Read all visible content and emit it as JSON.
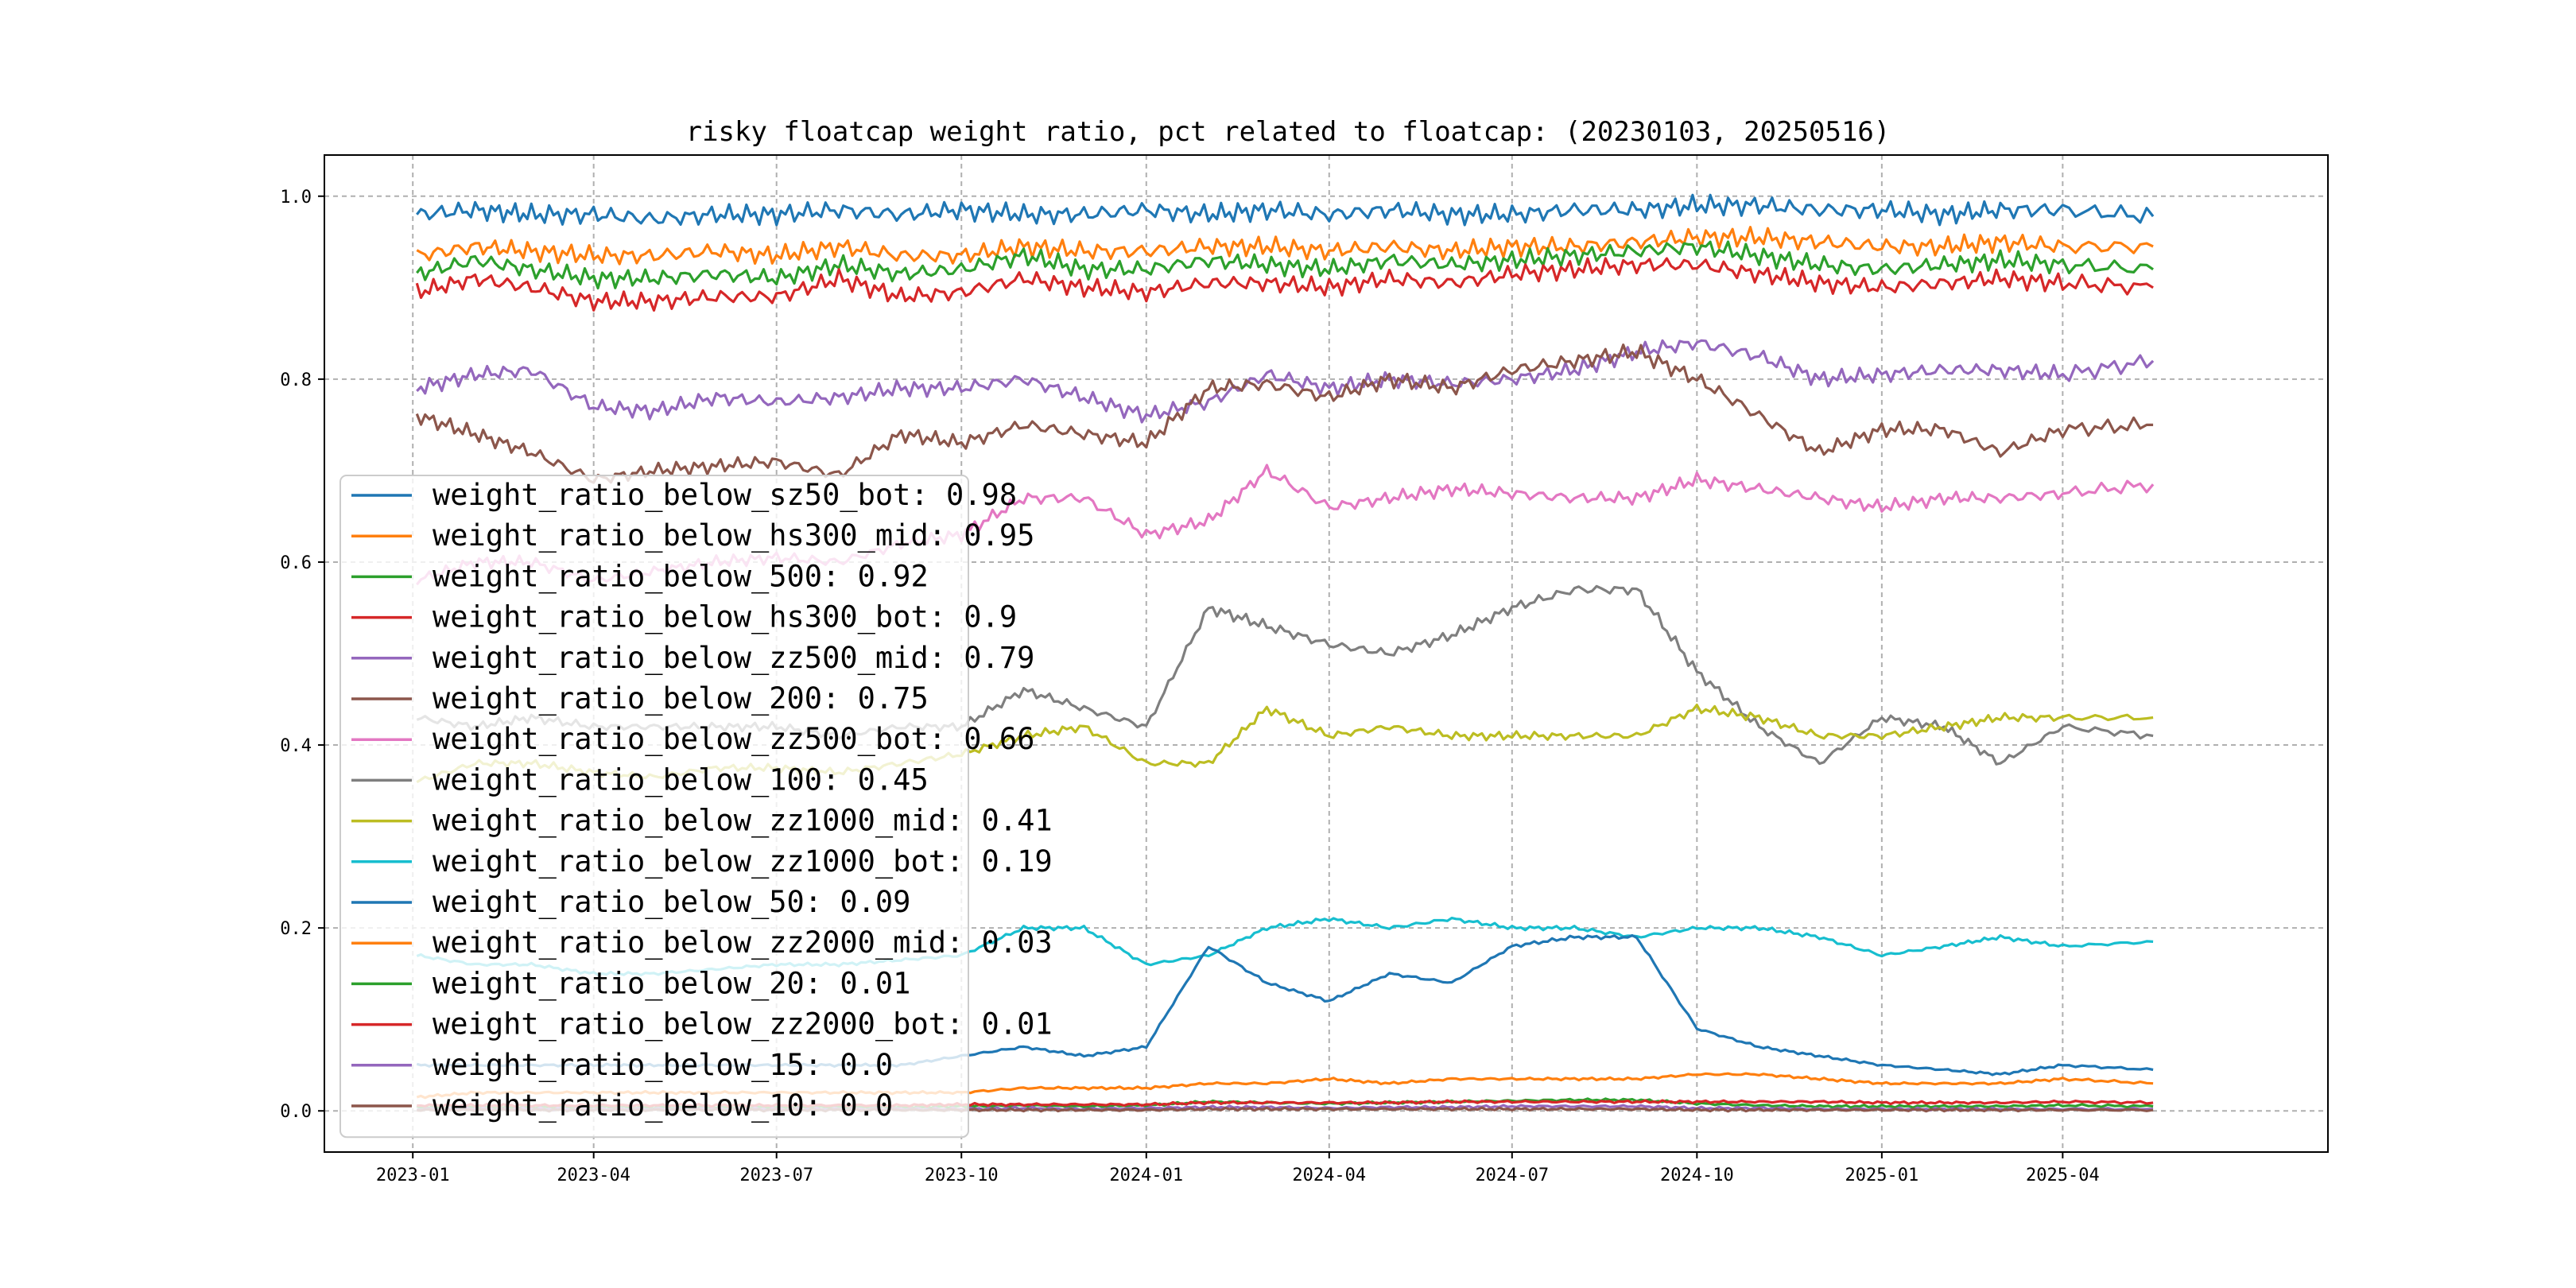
{
  "chart_data": {
    "type": "line",
    "title": "risky floatcap weight ratio, pct related to floatcap: (20230103, 20250516)",
    "xlabel": "",
    "ylabel": "",
    "x_range": [
      "2022-11-18",
      "2025-08-11"
    ],
    "ylim": [
      -0.045,
      1.045
    ],
    "x_ticks": [
      {
        "date": "2023-01-01",
        "label": "2023-01"
      },
      {
        "date": "2023-04-01",
        "label": "2023-04"
      },
      {
        "date": "2023-07-01",
        "label": "2023-07"
      },
      {
        "date": "2023-10-01",
        "label": "2023-10"
      },
      {
        "date": "2024-01-01",
        "label": "2024-01"
      },
      {
        "date": "2024-04-01",
        "label": "2024-04"
      },
      {
        "date": "2024-07-01",
        "label": "2024-07"
      },
      {
        "date": "2024-10-01",
        "label": "2024-10"
      },
      {
        "date": "2025-01-01",
        "label": "2025-01"
      },
      {
        "date": "2025-04-01",
        "label": "2025-04"
      }
    ],
    "y_ticks": [
      {
        "value": 0.0,
        "label": "0.0"
      },
      {
        "value": 0.2,
        "label": "0.2"
      },
      {
        "value": 0.4,
        "label": "0.4"
      },
      {
        "value": 0.6,
        "label": "0.6"
      },
      {
        "value": 0.8,
        "label": "0.8"
      },
      {
        "value": 1.0,
        "label": "1.0"
      }
    ],
    "grid": true,
    "legend_position": "center-left",
    "x_dates": [
      "2023-01-03",
      "2023-02-01",
      "2023-03-01",
      "2023-04-01",
      "2023-05-01",
      "2023-06-01",
      "2023-07-01",
      "2023-08-01",
      "2023-09-01",
      "2023-10-01",
      "2023-11-01",
      "2023-12-01",
      "2024-01-01",
      "2024-02-01",
      "2024-03-01",
      "2024-04-01",
      "2024-05-01",
      "2024-06-01",
      "2024-07-01",
      "2024-08-01",
      "2024-09-01",
      "2024-10-01",
      "2024-11-01",
      "2024-12-01",
      "2025-01-01",
      "2025-02-01",
      "2025-03-01",
      "2025-04-01",
      "2025-05-16"
    ],
    "series": [
      {
        "name": "weight_ratio_below_sz50_bot: 0.98",
        "color": "#1f77b4",
        "values": [
          0.98,
          0.985,
          0.98,
          0.98,
          0.975,
          0.98,
          0.98,
          0.985,
          0.98,
          0.985,
          0.98,
          0.98,
          0.985,
          0.98,
          0.985,
          0.98,
          0.985,
          0.98,
          0.98,
          0.985,
          0.985,
          0.99,
          0.99,
          0.985,
          0.985,
          0.98,
          0.985,
          0.985,
          0.978
        ]
      },
      {
        "name": "weight_ratio_below_hs300_mid: 0.95",
        "color": "#ff7f0e",
        "values": [
          0.935,
          0.945,
          0.94,
          0.935,
          0.935,
          0.94,
          0.935,
          0.945,
          0.935,
          0.935,
          0.945,
          0.94,
          0.94,
          0.945,
          0.945,
          0.94,
          0.945,
          0.94,
          0.945,
          0.945,
          0.95,
          0.955,
          0.955,
          0.95,
          0.945,
          0.945,
          0.95,
          0.945,
          0.945
        ]
      },
      {
        "name": "weight_ratio_below_500: 0.92",
        "color": "#2ca02c",
        "values": [
          0.915,
          0.93,
          0.92,
          0.91,
          0.91,
          0.915,
          0.91,
          0.925,
          0.915,
          0.92,
          0.935,
          0.92,
          0.92,
          0.93,
          0.925,
          0.92,
          0.93,
          0.925,
          0.93,
          0.935,
          0.94,
          0.945,
          0.935,
          0.925,
          0.92,
          0.925,
          0.93,
          0.925,
          0.92
        ]
      },
      {
        "name": "weight_ratio_below_hs300_bot: 0.9",
        "color": "#d62728",
        "values": [
          0.895,
          0.91,
          0.9,
          0.885,
          0.885,
          0.89,
          0.89,
          0.91,
          0.89,
          0.895,
          0.91,
          0.9,
          0.895,
          0.905,
          0.905,
          0.9,
          0.91,
          0.905,
          0.915,
          0.92,
          0.925,
          0.925,
          0.915,
          0.905,
          0.9,
          0.905,
          0.91,
          0.905,
          0.9
        ]
      },
      {
        "name": "weight_ratio_below_zz500_mid: 0.79",
        "color": "#9467bd",
        "values": [
          0.79,
          0.805,
          0.81,
          0.77,
          0.765,
          0.78,
          0.775,
          0.78,
          0.79,
          0.79,
          0.8,
          0.78,
          0.76,
          0.775,
          0.805,
          0.79,
          0.8,
          0.795,
          0.8,
          0.81,
          0.83,
          0.84,
          0.825,
          0.8,
          0.805,
          0.81,
          0.81,
          0.805,
          0.82
        ]
      },
      {
        "name": "weight_ratio_below_200: 0.75",
        "color": "#8c564b",
        "values": [
          0.76,
          0.74,
          0.72,
          0.69,
          0.7,
          0.705,
          0.71,
          0.695,
          0.74,
          0.73,
          0.75,
          0.74,
          0.73,
          0.79,
          0.795,
          0.78,
          0.8,
          0.79,
          0.81,
          0.82,
          0.83,
          0.8,
          0.76,
          0.72,
          0.745,
          0.745,
          0.72,
          0.745,
          0.75
        ]
      },
      {
        "name": "weight_ratio_below_zz500_bot: 0.66",
        "color": "#e377c2",
        "values": [
          0.58,
          0.6,
          0.6,
          0.58,
          0.59,
          0.6,
          0.605,
          0.6,
          0.62,
          0.63,
          0.67,
          0.67,
          0.63,
          0.645,
          0.7,
          0.66,
          0.67,
          0.68,
          0.675,
          0.67,
          0.67,
          0.69,
          0.68,
          0.67,
          0.66,
          0.67,
          0.67,
          0.675,
          0.685
        ]
      },
      {
        "name": "weight_ratio_below_100: 0.45",
        "color": "#7f7f7f",
        "values": [
          0.43,
          0.42,
          0.43,
          0.42,
          0.42,
          0.42,
          0.42,
          0.41,
          0.42,
          0.42,
          0.46,
          0.44,
          0.42,
          0.55,
          0.53,
          0.51,
          0.5,
          0.52,
          0.55,
          0.57,
          0.57,
          0.48,
          0.42,
          0.38,
          0.43,
          0.42,
          0.38,
          0.42,
          0.41
        ]
      },
      {
        "name": "weight_ratio_below_zz1000_mid: 0.41",
        "color": "#bcbd22",
        "values": [
          0.36,
          0.38,
          0.38,
          0.37,
          0.365,
          0.375,
          0.375,
          0.37,
          0.38,
          0.39,
          0.41,
          0.42,
          0.38,
          0.38,
          0.44,
          0.41,
          0.42,
          0.41,
          0.41,
          0.41,
          0.41,
          0.44,
          0.43,
          0.41,
          0.41,
          0.42,
          0.43,
          0.43,
          0.43
        ]
      },
      {
        "name": "weight_ratio_below_zz1000_bot: 0.19",
        "color": "#17becf",
        "values": [
          0.17,
          0.16,
          0.16,
          0.15,
          0.15,
          0.155,
          0.16,
          0.16,
          0.165,
          0.17,
          0.2,
          0.2,
          0.16,
          0.17,
          0.2,
          0.21,
          0.2,
          0.21,
          0.2,
          0.2,
          0.19,
          0.2,
          0.2,
          0.19,
          0.17,
          0.18,
          0.19,
          0.18,
          0.185
        ]
      },
      {
        "name": "weight_ratio_below_50: 0.09",
        "color": "#1f77b4",
        "values": [
          0.05,
          0.05,
          0.05,
          0.05,
          0.05,
          0.05,
          0.05,
          0.05,
          0.05,
          0.06,
          0.07,
          0.06,
          0.07,
          0.18,
          0.14,
          0.12,
          0.15,
          0.14,
          0.18,
          0.19,
          0.19,
          0.09,
          0.07,
          0.06,
          0.05,
          0.045,
          0.04,
          0.05,
          0.045
        ]
      },
      {
        "name": "weight_ratio_below_zz2000_mid: 0.03",
        "color": "#ff7f0e",
        "values": [
          0.015,
          0.02,
          0.02,
          0.02,
          0.02,
          0.02,
          0.02,
          0.02,
          0.02,
          0.02,
          0.025,
          0.025,
          0.025,
          0.03,
          0.03,
          0.035,
          0.03,
          0.035,
          0.035,
          0.035,
          0.035,
          0.04,
          0.04,
          0.035,
          0.03,
          0.03,
          0.03,
          0.035,
          0.03
        ]
      },
      {
        "name": "weight_ratio_below_20: 0.01",
        "color": "#2ca02c",
        "values": [
          0.004,
          0.004,
          0.004,
          0.004,
          0.004,
          0.004,
          0.004,
          0.004,
          0.004,
          0.005,
          0.006,
          0.005,
          0.006,
          0.01,
          0.009,
          0.008,
          0.009,
          0.01,
          0.011,
          0.012,
          0.012,
          0.008,
          0.006,
          0.005,
          0.005,
          0.005,
          0.005,
          0.006,
          0.005
        ]
      },
      {
        "name": "weight_ratio_below_zz2000_bot: 0.01",
        "color": "#d62728",
        "values": [
          0.006,
          0.006,
          0.006,
          0.006,
          0.006,
          0.006,
          0.006,
          0.006,
          0.006,
          0.007,
          0.007,
          0.007,
          0.007,
          0.009,
          0.009,
          0.009,
          0.009,
          0.01,
          0.01,
          0.01,
          0.01,
          0.01,
          0.01,
          0.01,
          0.009,
          0.009,
          0.009,
          0.01,
          0.009
        ]
      },
      {
        "name": "weight_ratio_below_15: 0.0",
        "color": "#9467bd",
        "values": [
          0.002,
          0.002,
          0.002,
          0.002,
          0.002,
          0.002,
          0.002,
          0.002,
          0.002,
          0.002,
          0.003,
          0.002,
          0.003,
          0.004,
          0.004,
          0.003,
          0.004,
          0.004,
          0.005,
          0.005,
          0.005,
          0.003,
          0.003,
          0.002,
          0.002,
          0.002,
          0.002,
          0.002,
          0.002
        ]
      },
      {
        "name": "weight_ratio_below_10: 0.0",
        "color": "#8c564b",
        "values": [
          0.001,
          0.001,
          0.001,
          0.001,
          0.001,
          0.001,
          0.001,
          0.001,
          0.001,
          0.001,
          0.001,
          0.001,
          0.001,
          0.002,
          0.002,
          0.002,
          0.002,
          0.002,
          0.002,
          0.002,
          0.002,
          0.001,
          0.001,
          0.001,
          0.001,
          0.001,
          0.001,
          0.001,
          0.001
        ]
      }
    ]
  }
}
